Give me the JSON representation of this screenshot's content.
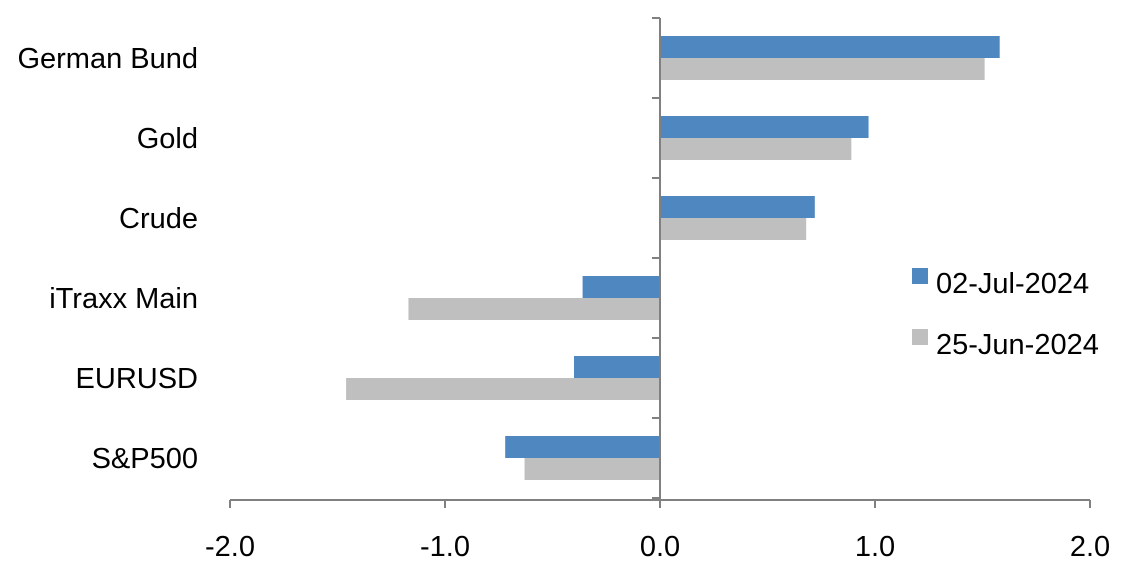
{
  "chart_data": {
    "type": "bar",
    "orientation": "horizontal",
    "categories": [
      "German Bund",
      "Gold",
      "Crude",
      "iTraxx Main",
      "EURUSD",
      "S&P500"
    ],
    "series": [
      {
        "name": "02-Jul-2024",
        "color": "#4f87c0",
        "values": [
          1.58,
          0.97,
          0.72,
          -0.36,
          -0.4,
          -0.72
        ]
      },
      {
        "name": "25-Jun-2024",
        "color": "#bfbfbf",
        "values": [
          1.51,
          0.89,
          0.68,
          -1.17,
          -1.46,
          -0.63
        ]
      }
    ],
    "xlim": [
      -2.0,
      2.0
    ],
    "xticks": [
      "-2.0",
      "-1.0",
      "0.0",
      "1.0",
      "2.0"
    ],
    "xtick_values": [
      -2,
      -1,
      0,
      1,
      2
    ],
    "legend_position": "right",
    "grid": false,
    "title": "",
    "xlabel": "",
    "ylabel": ""
  }
}
